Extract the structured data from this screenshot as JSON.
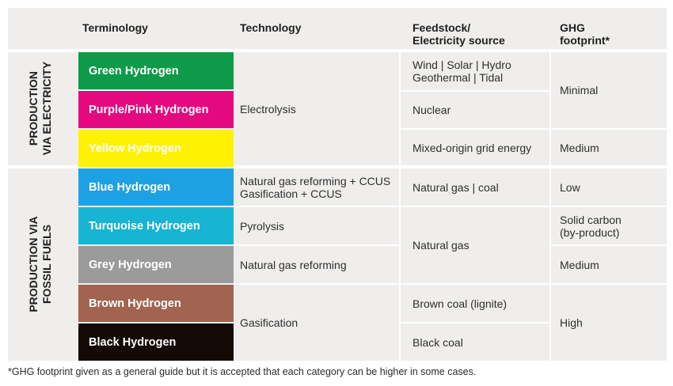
{
  "headers": {
    "terminology": "Terminology",
    "technology": "Technology",
    "feedstock_line1": "Feedstock/",
    "feedstock_line2": "Electricity source",
    "ghg_line1": "GHG",
    "ghg_line2": "footprint*"
  },
  "groups": {
    "electricity_line1": "PRODUCTION",
    "electricity_line2": "VIA ELECTRICITY",
    "fossil_line1": "PRODUCTION VIA",
    "fossil_line2": "FOSSIL FUELS"
  },
  "terms": [
    {
      "label": "Green Hydrogen",
      "color": "#0f9a4a"
    },
    {
      "label": "Purple/Pink Hydrogen",
      "color": "#e5097f"
    },
    {
      "label": "Yellow Hydrogen",
      "color": "#fff200"
    },
    {
      "label": "Blue Hydrogen",
      "color": "#1da1e2"
    },
    {
      "label": "Turquoise Hydrogen",
      "color": "#18b4d3"
    },
    {
      "label": "Grey Hydrogen",
      "color": "#9b9b9b"
    },
    {
      "label": "Brown Hydrogen",
      "color": "#a06450"
    },
    {
      "label": "Black Hydrogen",
      "color": "#130a06"
    }
  ],
  "technology": {
    "electrolysis": "Electrolysis",
    "blue_line1": "Natural gas reforming + CCUS",
    "blue_line2": "Gasification + CCUS",
    "pyrolysis": "Pyrolysis",
    "ng_reforming": "Natural gas reforming",
    "gasification": "Gasification"
  },
  "feedstock": {
    "renewables_line1": "Wind | Solar | Hydro",
    "renewables_line2": "Geothermal | Tidal",
    "nuclear": "Nuclear",
    "grid": "Mixed-origin grid energy",
    "ng_coal": "Natural gas | coal",
    "natural_gas": "Natural gas",
    "brown_coal": "Brown coal (lignite)",
    "black_coal": "Black coal"
  },
  "ghg": {
    "minimal": "Minimal",
    "medium_yellow": "Medium",
    "low": "Low",
    "solid_line1": "Solid carbon",
    "solid_line2": "(by-product)",
    "medium_grey": "Medium",
    "high": "High"
  },
  "footnote": "*GHG footprint given as a general guide but it is accepted that each category can be higher in some cases."
}
